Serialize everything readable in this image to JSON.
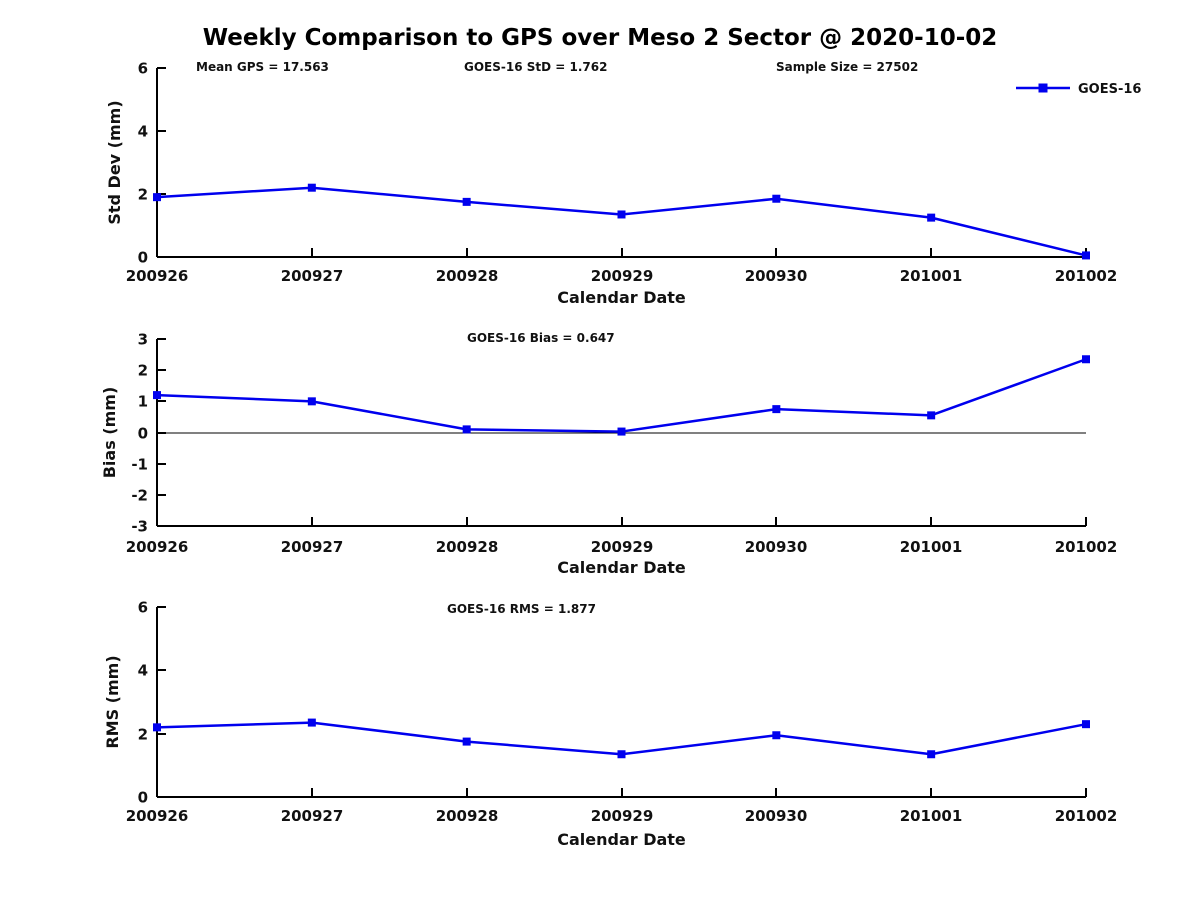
{
  "title": "Weekly Comparison to GPS over Meso 2 Sector @ 2020-10-02",
  "legend": {
    "label": "GOES-16",
    "position": "top-right"
  },
  "colors": {
    "series": "#0000EE",
    "axis": "#000000",
    "text": "#111111",
    "background": "#ffffff"
  },
  "chart_data": [
    {
      "type": "line",
      "name": "std-dev-panel",
      "ylabel": "Std Dev (mm)",
      "xlabel": "Calendar Date",
      "ylim": [
        0,
        6
      ],
      "yticks": [
        0,
        2,
        4,
        6
      ],
      "grid": false,
      "zero_line": false,
      "annotations": [
        "Mean GPS = 17.563",
        "GOES-16 StD = 1.762",
        "Sample Size = 27502"
      ],
      "categories": [
        "200926",
        "200927",
        "200928",
        "200929",
        "200930",
        "201001",
        "201002"
      ],
      "series": [
        {
          "name": "GOES-16",
          "marker": "square",
          "values": [
            1.9,
            2.2,
            1.75,
            1.35,
            1.85,
            1.25,
            0.05
          ]
        }
      ]
    },
    {
      "type": "line",
      "name": "bias-panel",
      "ylabel": "Bias (mm)",
      "xlabel": "Calendar Date",
      "ylim": [
        -3,
        3
      ],
      "yticks": [
        -3,
        -2,
        -1,
        0,
        1,
        2,
        3
      ],
      "grid": false,
      "zero_line": true,
      "annotations": [
        "GOES-16 Bias  = 0.647"
      ],
      "categories": [
        "200926",
        "200927",
        "200928",
        "200929",
        "200930",
        "201001",
        "201002"
      ],
      "series": [
        {
          "name": "GOES-16",
          "marker": "square",
          "values": [
            1.2,
            1.0,
            0.1,
            0.03,
            0.75,
            0.55,
            2.35
          ]
        }
      ]
    },
    {
      "type": "line",
      "name": "rms-panel",
      "ylabel": "RMS (mm)",
      "xlabel": "Calendar Date",
      "ylim": [
        0,
        6
      ],
      "yticks": [
        0,
        2,
        4,
        6
      ],
      "grid": false,
      "zero_line": false,
      "annotations": [
        "GOES-16 RMS = 1.877"
      ],
      "categories": [
        "200926",
        "200927",
        "200928",
        "200929",
        "200930",
        "201001",
        "201002"
      ],
      "series": [
        {
          "name": "GOES-16",
          "marker": "square",
          "values": [
            2.2,
            2.35,
            1.75,
            1.35,
            1.95,
            1.35,
            2.3
          ]
        }
      ]
    }
  ]
}
